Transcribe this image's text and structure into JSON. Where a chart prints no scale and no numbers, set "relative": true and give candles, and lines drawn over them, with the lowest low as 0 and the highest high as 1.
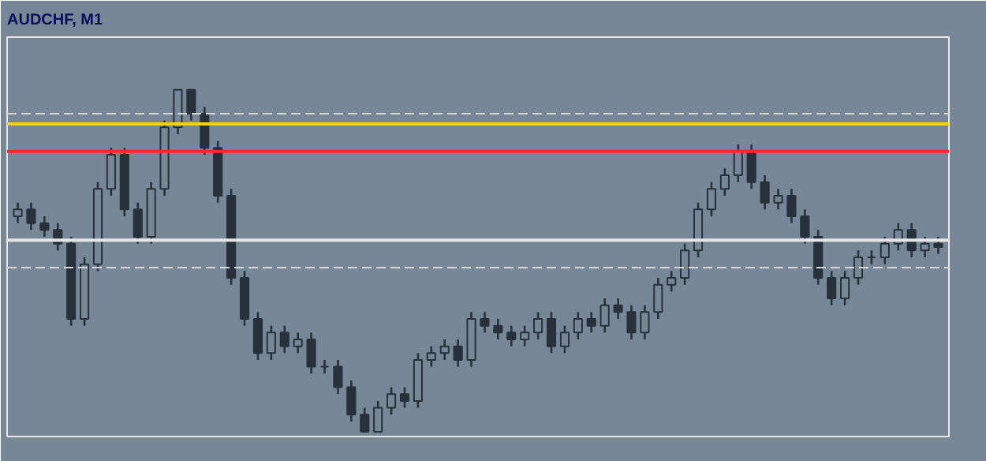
{
  "chart_data": {
    "type": "candlestick",
    "title": "AUDCHF, M1",
    "relative": true,
    "color": "#26313b",
    "categories": [
      null,
      null,
      null,
      null,
      null,
      null,
      null,
      null,
      null,
      null,
      null,
      null,
      null,
      null,
      null,
      null,
      null,
      null,
      null,
      null,
      null,
      null,
      null,
      null,
      null,
      null,
      null,
      null,
      null,
      null,
      null,
      null,
      null,
      null,
      null,
      null,
      null,
      null,
      null,
      null,
      null,
      null,
      null,
      null,
      null,
      null,
      null,
      null,
      null,
      null,
      null,
      null,
      null,
      null,
      null,
      null,
      null,
      null,
      null,
      null,
      null,
      null,
      null,
      null,
      null,
      null,
      null,
      null,
      null,
      null
    ],
    "ohlc": [
      [
        0.63,
        0.67,
        0.61,
        0.65
      ],
      [
        0.65,
        0.67,
        0.59,
        0.61
      ],
      [
        0.61,
        0.63,
        0.57,
        0.59
      ],
      [
        0.59,
        0.61,
        0.53,
        0.55
      ],
      [
        0.55,
        0.57,
        0.31,
        0.33
      ],
      [
        0.33,
        0.51,
        0.31,
        0.49
      ],
      [
        0.49,
        0.73,
        0.47,
        0.71
      ],
      [
        0.71,
        0.83,
        0.69,
        0.81
      ],
      [
        0.81,
        0.83,
        0.63,
        0.65
      ],
      [
        0.65,
        0.67,
        0.55,
        0.57
      ],
      [
        0.57,
        0.73,
        0.55,
        0.71
      ],
      [
        0.71,
        0.91,
        0.69,
        0.89
      ],
      [
        0.89,
        1.0,
        0.87,
        1.0
      ],
      [
        1.0,
        1.0,
        0.91,
        0.93
      ],
      [
        0.93,
        0.95,
        0.81,
        0.83
      ],
      [
        0.83,
        0.85,
        0.67,
        0.69
      ],
      [
        0.69,
        0.71,
        0.43,
        0.45
      ],
      [
        0.45,
        0.47,
        0.31,
        0.33
      ],
      [
        0.33,
        0.35,
        0.21,
        0.23
      ],
      [
        0.23,
        0.31,
        0.21,
        0.29
      ],
      [
        0.29,
        0.31,
        0.23,
        0.25
      ],
      [
        0.25,
        0.29,
        0.23,
        0.27
      ],
      [
        0.27,
        0.29,
        0.17,
        0.19
      ],
      [
        0.19,
        0.21,
        0.17,
        0.19
      ],
      [
        0.19,
        0.21,
        0.11,
        0.13
      ],
      [
        0.13,
        0.15,
        0.03,
        0.05
      ],
      [
        0.05,
        0.07,
        0,
        0
      ],
      [
        0,
        0.09,
        0,
        0.07
      ],
      [
        0.07,
        0.13,
        0.05,
        0.11
      ],
      [
        0.11,
        0.13,
        0.07,
        0.09
      ],
      [
        0.09,
        0.23,
        0.07,
        0.21
      ],
      [
        0.21,
        0.25,
        0.19,
        0.23
      ],
      [
        0.23,
        0.27,
        0.21,
        0.25
      ],
      [
        0.25,
        0.27,
        0.19,
        0.21
      ],
      [
        0.21,
        0.35,
        0.19,
        0.33
      ],
      [
        0.33,
        0.35,
        0.29,
        0.31
      ],
      [
        0.31,
        0.33,
        0.27,
        0.29
      ],
      [
        0.29,
        0.31,
        0.25,
        0.27
      ],
      [
        0.27,
        0.31,
        0.25,
        0.29
      ],
      [
        0.29,
        0.35,
        0.27,
        0.33
      ],
      [
        0.33,
        0.35,
        0.23,
        0.25
      ],
      [
        0.25,
        0.31,
        0.23,
        0.29
      ],
      [
        0.29,
        0.35,
        0.27,
        0.33
      ],
      [
        0.33,
        0.35,
        0.29,
        0.31
      ],
      [
        0.31,
        0.39,
        0.29,
        0.37
      ],
      [
        0.37,
        0.39,
        0.33,
        0.35
      ],
      [
        0.35,
        0.37,
        0.27,
        0.29
      ],
      [
        0.29,
        0.37,
        0.27,
        0.35
      ],
      [
        0.35,
        0.45,
        0.33,
        0.43
      ],
      [
        0.43,
        0.47,
        0.41,
        0.45
      ],
      [
        0.45,
        0.55,
        0.43,
        0.53
      ],
      [
        0.53,
        0.67,
        0.51,
        0.65
      ],
      [
        0.65,
        0.73,
        0.63,
        0.71
      ],
      [
        0.71,
        0.77,
        0.69,
        0.75
      ],
      [
        0.75,
        0.84,
        0.73,
        0.82
      ],
      [
        0.82,
        0.84,
        0.71,
        0.73
      ],
      [
        0.73,
        0.75,
        0.65,
        0.67
      ],
      [
        0.67,
        0.71,
        0.65,
        0.69
      ],
      [
        0.69,
        0.71,
        0.61,
        0.63
      ],
      [
        0.63,
        0.65,
        0.55,
        0.57
      ],
      [
        0.57,
        0.59,
        0.43,
        0.45
      ],
      [
        0.45,
        0.47,
        0.37,
        0.39
      ],
      [
        0.39,
        0.47,
        0.37,
        0.45
      ],
      [
        0.45,
        0.53,
        0.43,
        0.51
      ],
      [
        0.51,
        0.53,
        0.49,
        0.51
      ],
      [
        0.51,
        0.57,
        0.49,
        0.55
      ],
      [
        0.55,
        0.61,
        0.53,
        0.59
      ],
      [
        0.59,
        0.61,
        0.51,
        0.53
      ],
      [
        0.53,
        0.57,
        0.51,
        0.55
      ],
      [
        0.55,
        0.57,
        0.52,
        0.54
      ]
    ],
    "ref_lines": [
      {
        "axis": "y",
        "value": 0.93,
        "color": "#d8d8d8",
        "line_style": "dashed"
      },
      {
        "axis": "y",
        "value": 0.9,
        "color": "#ffd200",
        "line_style": "solid"
      },
      {
        "axis": "y",
        "value": 0.82,
        "color": "#ff2a2a",
        "line_style": "solid"
      },
      {
        "axis": "y",
        "value": 0.56,
        "color": "#e6e6e6",
        "line_style": "solid"
      },
      {
        "axis": "y",
        "value": 0.48,
        "color": "#d8d8d8",
        "line_style": "dashed"
      }
    ]
  }
}
